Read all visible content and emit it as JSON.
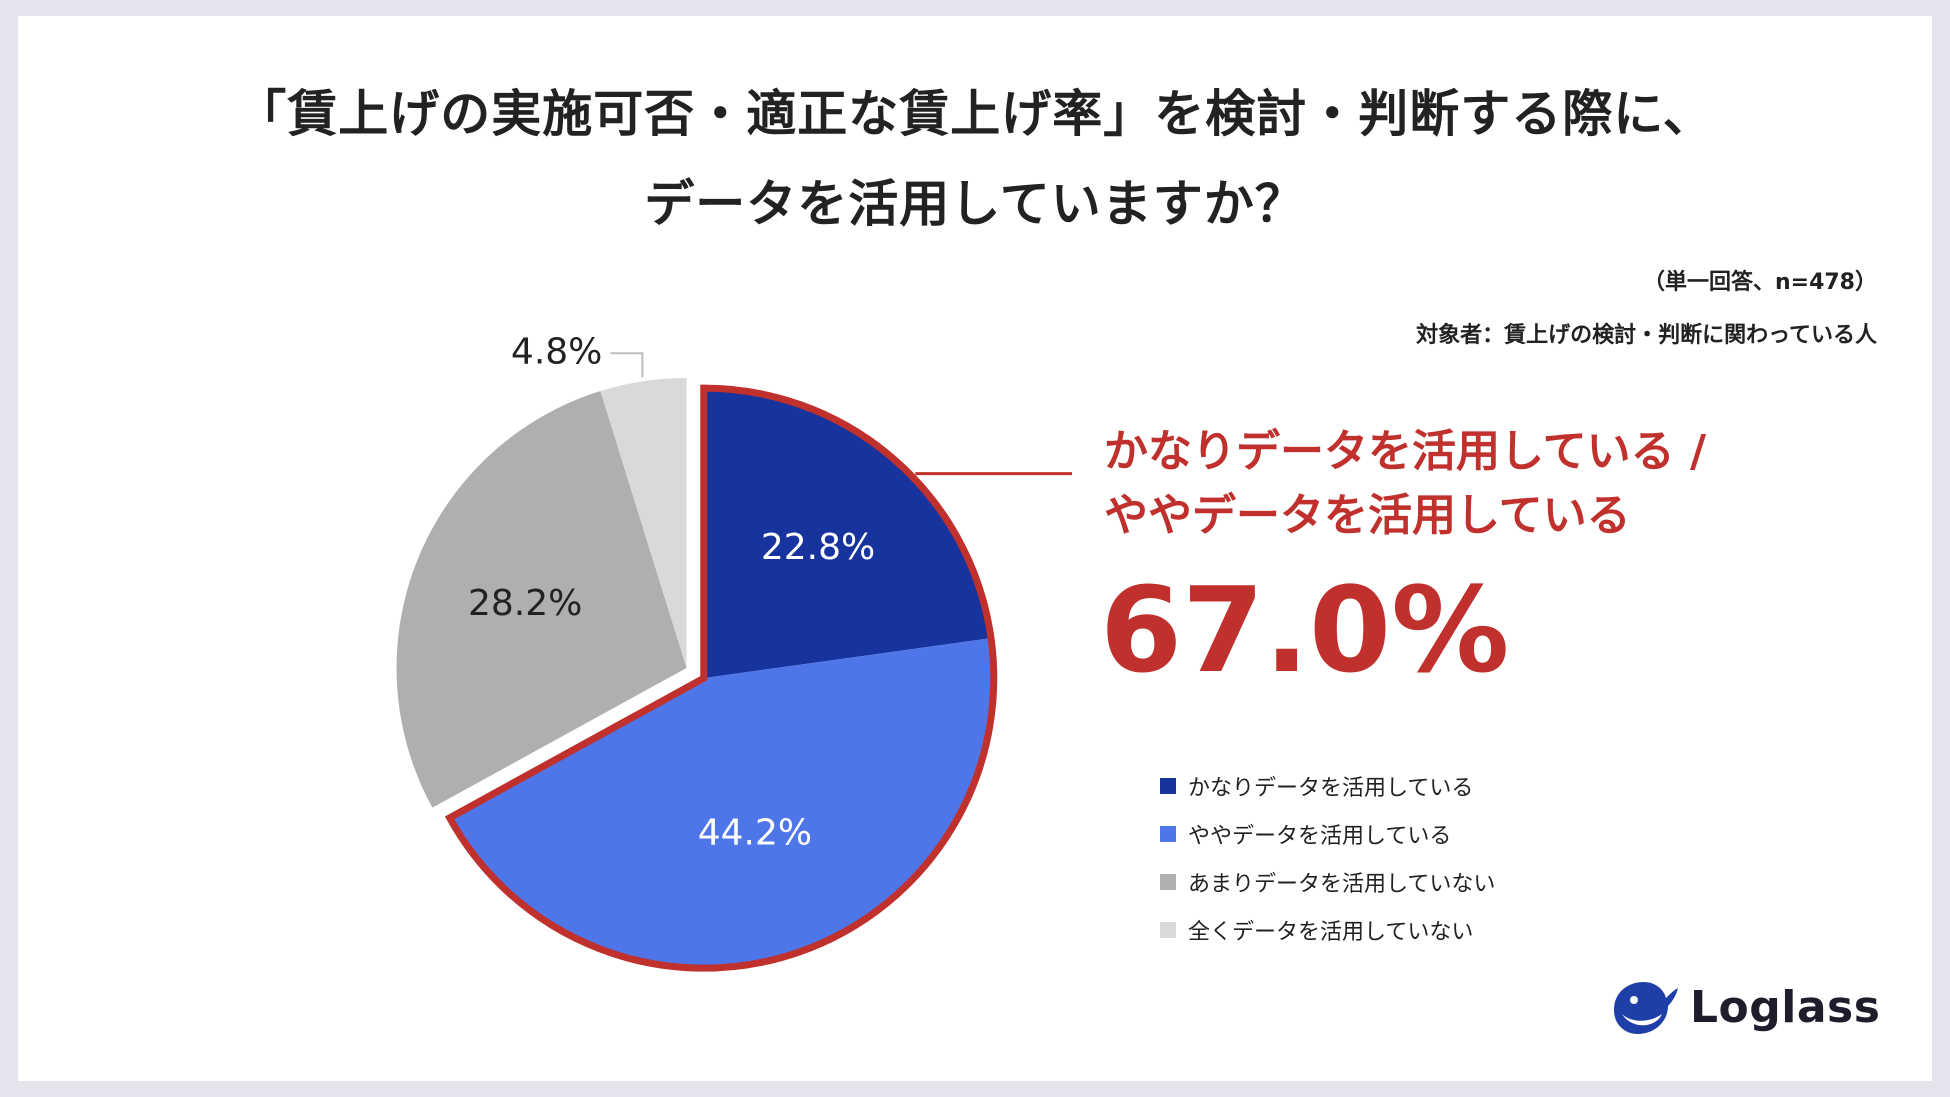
{
  "title": {
    "line1": "「賃上げの実施可否・適正な賃上げ率」を検討・判断する際に、",
    "line2": "データを活用していますか？"
  },
  "note": {
    "sample": "（単一回答、n=478）",
    "target": "対象者：賃上げの検討・判断に関わっている人"
  },
  "callout": {
    "line1": "かなりデータを活用している /",
    "line2": "ややデータを活用している",
    "value": "67.0%",
    "color": "#c0302d"
  },
  "brand": {
    "name": "Loglass",
    "icon": "whale-logo-icon"
  },
  "chart_data": {
    "type": "pie",
    "categories": [
      "かなりデータを活用している",
      "ややデータを活用している",
      "あまりデータを活用していない",
      "全くデータを活用していない"
    ],
    "values": [
      22.8,
      44.2,
      28.2,
      4.8
    ],
    "labels": [
      "22.8%",
      "44.2%",
      "28.2%",
      "4.8%"
    ],
    "colors": [
      "#17339e",
      "#4f76e8",
      "#b1aeae",
      "#d9d9d9"
    ],
    "label_colors": [
      "#ffffff",
      "#ffffff",
      "#222222",
      "#222222"
    ],
    "highlight_color": "#c0302d",
    "legend_position": "right"
  }
}
